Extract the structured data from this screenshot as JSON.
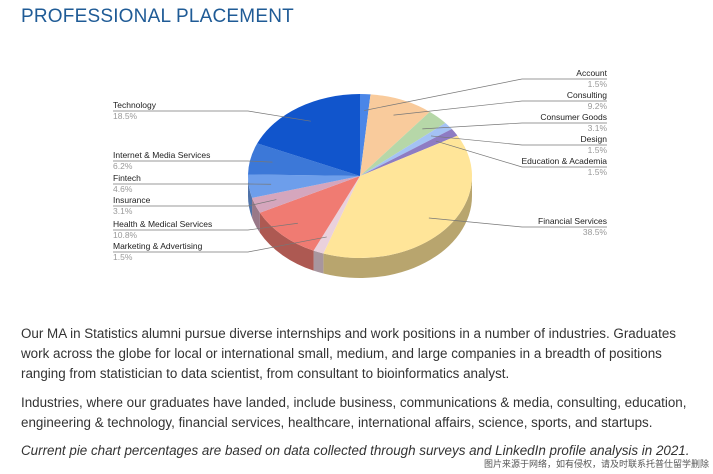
{
  "title": "PROFESSIONAL PLACEMENT",
  "chart_data": {
    "type": "pie",
    "style": "3d",
    "slices": [
      {
        "label": "Account",
        "value": 1.5,
        "pct": "1.5%",
        "color": "#4a86e8"
      },
      {
        "label": "Consulting",
        "value": 9.2,
        "pct": "9.2%",
        "color": "#f9cb9c"
      },
      {
        "label": "Consumer Goods",
        "value": 3.1,
        "pct": "3.1%",
        "color": "#b6d7a8"
      },
      {
        "label": "Design",
        "value": 1.5,
        "pct": "1.5%",
        "color": "#a4c2f4"
      },
      {
        "label": "Education & Academia",
        "value": 1.5,
        "pct": "1.5%",
        "color": "#8e7cc3"
      },
      {
        "label": "Financial Services",
        "value": 38.5,
        "pct": "38.5%",
        "color": "#ffe599"
      },
      {
        "label": "Marketing & Advertising",
        "value": 1.5,
        "pct": "1.5%",
        "color": "#ead1dc"
      },
      {
        "label": "Health & Medical Services",
        "value": 10.8,
        "pct": "10.8%",
        "color": "#f07b72"
      },
      {
        "label": "Insurance",
        "value": 3.1,
        "pct": "3.1%",
        "color": "#d5a6bd"
      },
      {
        "label": "Fintech",
        "value": 4.6,
        "pct": "4.6%",
        "color": "#6d9eeb"
      },
      {
        "label": "Internet & Media Services",
        "value": 6.2,
        "pct": "6.2%",
        "color": "#3c78d8"
      },
      {
        "label": "Technology",
        "value": 18.5,
        "pct": "18.5%",
        "color": "#1155cc"
      }
    ]
  },
  "paragraphs": [
    "Our MA in Statistics alumni pursue diverse internships and work positions in a number of industries. Graduates work across the globe for local or international small, medium, and large companies in a breadth of positions ranging from statistician to data scientist, from consultant to bioinformatics analyst.",
    "Industries, where our graduates have landed, include business, communications & media, consulting, education, engineering & technology, financial services, healthcare, international affairs, science, sports, and startups.",
    "Current pie chart percentages are based on data collected through surveys and LinkedIn profile analysis in 2021."
  ],
  "watermark": "图片来源于网络，如有侵权，请及时联系托普仕留学删除"
}
